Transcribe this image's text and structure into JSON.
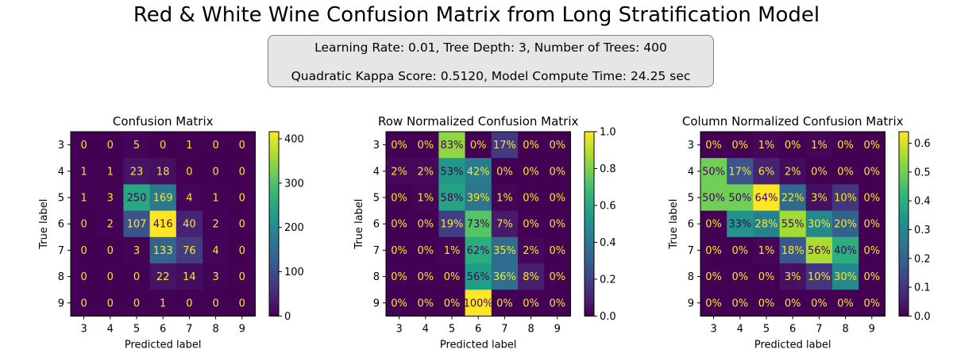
{
  "figure": {
    "title": "Red & White Wine Confusion Matrix from Long Stratification Model",
    "info_line1": "Learning Rate: 0.01, Tree Depth: 3, Number of Trees: 400",
    "info_line2": "Quadratic Kappa Score: 0.5120,  Model Compute Time: 24.25 sec"
  },
  "colormap": [
    "#440154",
    "#482878",
    "#3e4989",
    "#31688e",
    "#26828e",
    "#1f9e89",
    "#35b779",
    "#6ece58",
    "#b5de2b",
    "#fde725"
  ],
  "chart_data": [
    {
      "type": "heatmap",
      "title": "Confusion Matrix",
      "xlabel": "Predicted label",
      "ylabel": "True label",
      "x": [
        "3",
        "4",
        "5",
        "6",
        "7",
        "8",
        "9"
      ],
      "y": [
        "3",
        "4",
        "5",
        "6",
        "7",
        "8",
        "9"
      ],
      "values": [
        [
          0,
          0,
          5,
          0,
          1,
          0,
          0
        ],
        [
          1,
          1,
          23,
          18,
          0,
          0,
          0
        ],
        [
          1,
          3,
          250,
          169,
          4,
          1,
          0
        ],
        [
          0,
          2,
          107,
          416,
          40,
          2,
          0
        ],
        [
          0,
          0,
          3,
          133,
          76,
          4,
          0
        ],
        [
          0,
          0,
          0,
          22,
          14,
          3,
          0
        ],
        [
          0,
          0,
          0,
          1,
          0,
          0,
          0
        ]
      ],
      "labels": [
        [
          "0",
          "0",
          "5",
          "0",
          "1",
          "0",
          "0"
        ],
        [
          "1",
          "1",
          "23",
          "18",
          "0",
          "0",
          "0"
        ],
        [
          "1",
          "3",
          "250",
          "169",
          "4",
          "1",
          "0"
        ],
        [
          "0",
          "2",
          "107",
          "416",
          "40",
          "2",
          "0"
        ],
        [
          "0",
          "0",
          "3",
          "133",
          "76",
          "4",
          "0"
        ],
        [
          "0",
          "0",
          "0",
          "22",
          "14",
          "3",
          "0"
        ],
        [
          "0",
          "0",
          "0",
          "1",
          "0",
          "0",
          "0"
        ]
      ],
      "vmin": 0,
      "vmax": 416,
      "colorbar_ticks": [
        0,
        100,
        200,
        300,
        400
      ],
      "colorbar_labels": [
        "0",
        "100",
        "200",
        "300",
        "400"
      ]
    },
    {
      "type": "heatmap",
      "title": "Row Normalized Confusion Matrix",
      "xlabel": "Predicted label",
      "ylabel": "True label",
      "x": [
        "3",
        "4",
        "5",
        "6",
        "7",
        "8",
        "9"
      ],
      "y": [
        "3",
        "4",
        "5",
        "6",
        "7",
        "8",
        "9"
      ],
      "values": [
        [
          0,
          0,
          0.83,
          0,
          0.17,
          0,
          0
        ],
        [
          0.02,
          0.02,
          0.53,
          0.42,
          0,
          0,
          0
        ],
        [
          0,
          0.01,
          0.58,
          0.39,
          0.01,
          0,
          0
        ],
        [
          0,
          0,
          0.19,
          0.73,
          0.07,
          0,
          0
        ],
        [
          0,
          0,
          0.01,
          0.62,
          0.35,
          0.02,
          0
        ],
        [
          0,
          0,
          0,
          0.56,
          0.36,
          0.08,
          0
        ],
        [
          0,
          0,
          0,
          1.0,
          0,
          0,
          0
        ]
      ],
      "labels": [
        [
          "0%",
          "0%",
          "83%",
          "0%",
          "17%",
          "0%",
          "0%"
        ],
        [
          "2%",
          "2%",
          "53%",
          "42%",
          "0%",
          "0%",
          "0%"
        ],
        [
          "0%",
          "1%",
          "58%",
          "39%",
          "1%",
          "0%",
          "0%"
        ],
        [
          "0%",
          "0%",
          "19%",
          "73%",
          "7%",
          "0%",
          "0%"
        ],
        [
          "0%",
          "0%",
          "1%",
          "62%",
          "35%",
          "2%",
          "0%"
        ],
        [
          "0%",
          "0%",
          "0%",
          "56%",
          "36%",
          "8%",
          "0%"
        ],
        [
          "0%",
          "0%",
          "0%",
          "100%",
          "0%",
          "0%",
          "0%"
        ]
      ],
      "vmin": 0,
      "vmax": 1.0,
      "colorbar_ticks": [
        0,
        0.2,
        0.4,
        0.6,
        0.8,
        1.0
      ],
      "colorbar_labels": [
        "0.0",
        "0.2",
        "0.4",
        "0.6",
        "0.8",
        "1.0"
      ]
    },
    {
      "type": "heatmap",
      "title": "Column Normalized Confusion Matrix",
      "xlabel": "Predicted label",
      "ylabel": "True label",
      "x": [
        "3",
        "4",
        "5",
        "6",
        "7",
        "8",
        "9"
      ],
      "y": [
        "3",
        "4",
        "5",
        "6",
        "7",
        "8",
        "9"
      ],
      "values": [
        [
          0,
          0,
          0.01,
          0,
          0.01,
          0,
          0
        ],
        [
          0.5,
          0.17,
          0.06,
          0.02,
          0,
          0,
          0
        ],
        [
          0.5,
          0.5,
          0.64,
          0.22,
          0.03,
          0.1,
          0
        ],
        [
          0,
          0.33,
          0.28,
          0.55,
          0.3,
          0.2,
          0
        ],
        [
          0,
          0,
          0.01,
          0.18,
          0.56,
          0.4,
          0
        ],
        [
          0,
          0,
          0,
          0.03,
          0.1,
          0.3,
          0
        ],
        [
          0,
          0,
          0,
          0,
          0,
          0,
          0
        ]
      ],
      "labels": [
        [
          "0%",
          "0%",
          "1%",
          "0%",
          "1%",
          "0%",
          "0%"
        ],
        [
          "50%",
          "17%",
          "6%",
          "2%",
          "0%",
          "0%",
          "0%"
        ],
        [
          "50%",
          "50%",
          "64%",
          "22%",
          "3%",
          "10%",
          "0%"
        ],
        [
          "0%",
          "33%",
          "28%",
          "55%",
          "30%",
          "20%",
          "0%"
        ],
        [
          "0%",
          "0%",
          "1%",
          "18%",
          "56%",
          "40%",
          "0%"
        ],
        [
          "0%",
          "0%",
          "0%",
          "3%",
          "10%",
          "30%",
          "0%"
        ],
        [
          "0%",
          "0%",
          "0%",
          "0%",
          "0%",
          "0%",
          "0%"
        ]
      ],
      "vmin": 0,
      "vmax": 0.64,
      "colorbar_ticks": [
        0,
        0.1,
        0.2,
        0.3,
        0.4,
        0.5,
        0.6
      ],
      "colorbar_labels": [
        "0.0",
        "0.1",
        "0.2",
        "0.3",
        "0.4",
        "0.5",
        "0.6"
      ]
    }
  ]
}
